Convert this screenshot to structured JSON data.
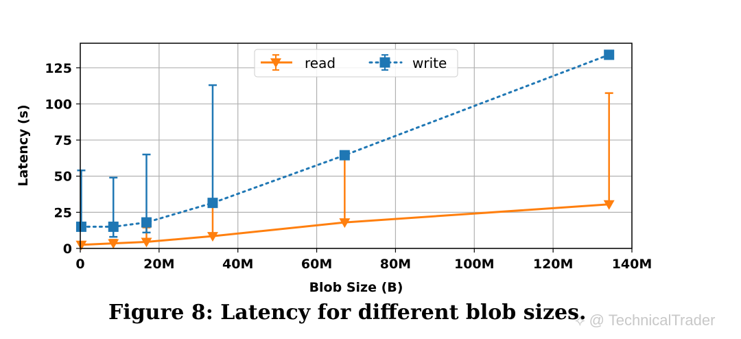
{
  "chart_data": {
    "type": "line",
    "title": "",
    "xlabel": "Blob Size (B)",
    "ylabel": "Latency (s)",
    "xlim": [
      0,
      140
    ],
    "ylim": [
      0,
      142
    ],
    "x_ticks": [
      {
        "value": 0,
        "label": "0"
      },
      {
        "value": 20,
        "label": "20M"
      },
      {
        "value": 40,
        "label": "40M"
      },
      {
        "value": 60,
        "label": "60M"
      },
      {
        "value": 80,
        "label": "80M"
      },
      {
        "value": 100,
        "label": "100M"
      },
      {
        "value": 120,
        "label": "120M"
      },
      {
        "value": 140,
        "label": "140M"
      }
    ],
    "y_ticks": [
      {
        "value": 0,
        "label": "0"
      },
      {
        "value": 25,
        "label": "25"
      },
      {
        "value": 50,
        "label": "50"
      },
      {
        "value": 75,
        "label": "75"
      },
      {
        "value": 100,
        "label": "100"
      },
      {
        "value": 125,
        "label": "125"
      }
    ],
    "grid": true,
    "legend_position": "top-center",
    "series": [
      {
        "name": "read",
        "color": "#ff7f0e",
        "line_style": "solid",
        "marker": "triangle-down",
        "x": [
          0.25,
          8.4,
          16.8,
          33.6,
          67.1,
          134.2
        ],
        "y": [
          2.5,
          3.5,
          4.5,
          8.5,
          18,
          30.5
        ],
        "err_low": [
          0,
          0,
          0,
          0,
          0,
          0
        ],
        "err_high": [
          0,
          2.5,
          10,
          20.5,
          45,
          77
        ]
      },
      {
        "name": "write",
        "color": "#1f77b4",
        "line_style": "dotted",
        "marker": "square",
        "x": [
          0.25,
          8.4,
          16.8,
          33.6,
          67.1,
          134.2
        ],
        "y": [
          15,
          15,
          18,
          31.5,
          64.5,
          134
        ],
        "err_low": [
          0,
          7,
          7,
          0,
          0,
          0
        ],
        "err_high": [
          39,
          34,
          47,
          81.5,
          0,
          0
        ]
      }
    ]
  },
  "caption": "Figure 8: Latency for different blob sizes.",
  "watermark": "⟡ @ TechnicalTrader"
}
